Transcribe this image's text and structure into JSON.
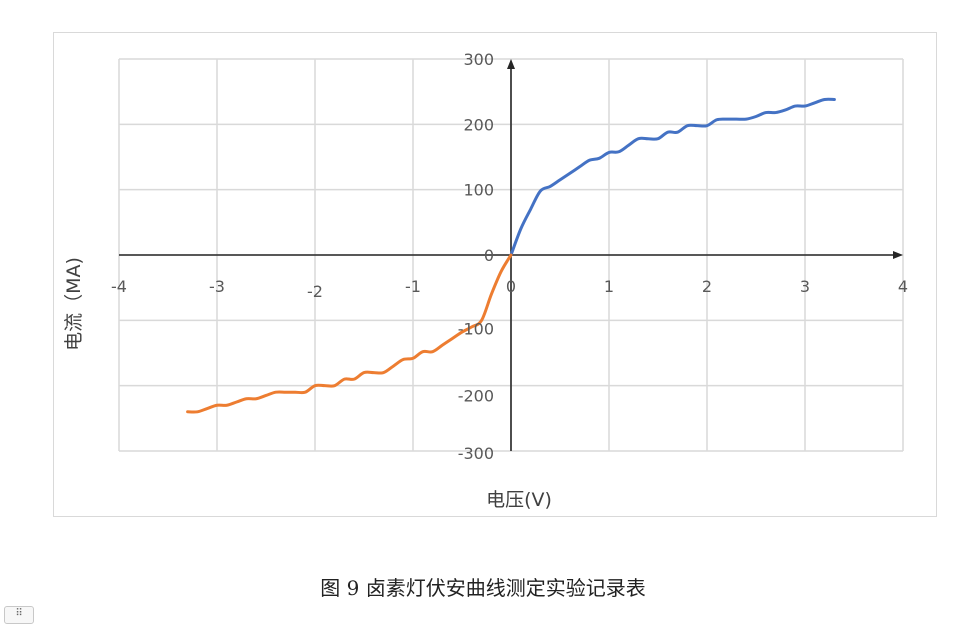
{
  "chart_data": {
    "type": "line",
    "xlabel": "电压(V)",
    "ylabel": "电流（MA)",
    "xlim": [
      -4,
      4
    ],
    "ylim": [
      -300,
      300
    ],
    "x_ticks": [
      -4,
      -3,
      -2,
      -1,
      0,
      1,
      2,
      3,
      4
    ],
    "y_ticks": [
      300,
      200,
      100,
      0,
      -100,
      -200,
      -300
    ],
    "grid": true,
    "legend": "none",
    "series": [
      {
        "color": "#4472c4",
        "points": [
          [
            0,
            0
          ],
          [
            0.1,
            40
          ],
          [
            0.2,
            70
          ],
          [
            0.3,
            98
          ],
          [
            0.4,
            105
          ],
          [
            0.5,
            115
          ],
          [
            0.6,
            125
          ],
          [
            0.7,
            135
          ],
          [
            0.8,
            145
          ],
          [
            0.9,
            148
          ],
          [
            1.0,
            157
          ],
          [
            1.1,
            158
          ],
          [
            1.2,
            168
          ],
          [
            1.3,
            178
          ],
          [
            1.4,
            178
          ],
          [
            1.5,
            178
          ],
          [
            1.6,
            188
          ],
          [
            1.7,
            188
          ],
          [
            1.8,
            198
          ],
          [
            1.9,
            198
          ],
          [
            2.0,
            198
          ],
          [
            2.1,
            207
          ],
          [
            2.2,
            208
          ],
          [
            2.3,
            208
          ],
          [
            2.4,
            208
          ],
          [
            2.5,
            212
          ],
          [
            2.6,
            218
          ],
          [
            2.7,
            218
          ],
          [
            2.8,
            222
          ],
          [
            2.9,
            228
          ],
          [
            3.0,
            228
          ],
          [
            3.1,
            233
          ],
          [
            3.2,
            238
          ],
          [
            3.3,
            238
          ]
        ]
      },
      {
        "color": "#ed7d31",
        "points": [
          [
            0,
            0
          ],
          [
            -0.1,
            -25
          ],
          [
            -0.2,
            -60
          ],
          [
            -0.3,
            -100
          ],
          [
            -0.4,
            -110
          ],
          [
            -0.5,
            -118
          ],
          [
            -0.6,
            -128
          ],
          [
            -0.7,
            -138
          ],
          [
            -0.8,
            -148
          ],
          [
            -0.9,
            -148
          ],
          [
            -1.0,
            -158
          ],
          [
            -1.1,
            -160
          ],
          [
            -1.2,
            -170
          ],
          [
            -1.3,
            -180
          ],
          [
            -1.4,
            -180
          ],
          [
            -1.5,
            -180
          ],
          [
            -1.6,
            -190
          ],
          [
            -1.7,
            -190
          ],
          [
            -1.8,
            -200
          ],
          [
            -1.9,
            -200
          ],
          [
            -2.0,
            -200
          ],
          [
            -2.1,
            -210
          ],
          [
            -2.2,
            -210
          ],
          [
            -2.3,
            -210
          ],
          [
            -2.4,
            -210
          ],
          [
            -2.5,
            -215
          ],
          [
            -2.6,
            -220
          ],
          [
            -2.7,
            -220
          ],
          [
            -2.8,
            -225
          ],
          [
            -2.9,
            -230
          ],
          [
            -3.0,
            -230
          ],
          [
            -3.1,
            -235
          ],
          [
            -3.2,
            -240
          ],
          [
            -3.3,
            -240
          ]
        ]
      }
    ]
  },
  "caption": "图 9 卤素灯伏安曲线测定实验记录表",
  "handle_icon": "⠿"
}
